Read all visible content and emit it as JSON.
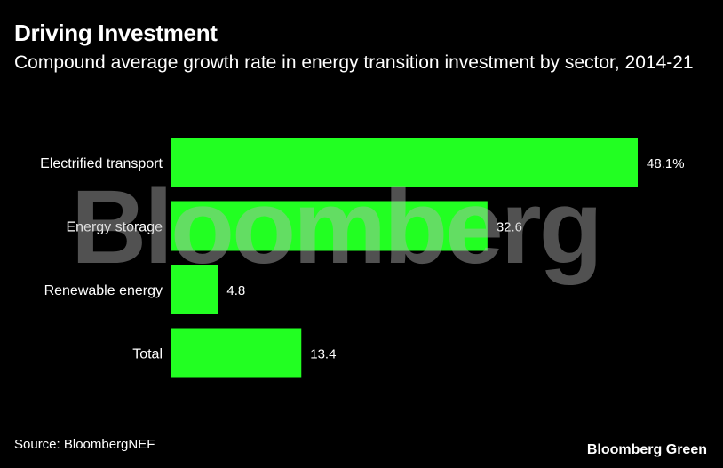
{
  "header": {
    "title": "Driving Investment",
    "subtitle": "Compound average growth rate in energy transition investment by sector, 2014-21"
  },
  "footer": {
    "source": "Source: BloombergNEF",
    "brand": "Bloomberg Green"
  },
  "watermark": "Bloomberg",
  "colors": {
    "background": "#000000",
    "bar": "#22ff22",
    "text": "#ffffff"
  },
  "chart_data": {
    "type": "bar",
    "orientation": "horizontal",
    "title": "Driving Investment",
    "subtitle": "Compound average growth rate in energy transition investment by sector, 2014-21",
    "categories": [
      "Electrified transport",
      "Energy storage",
      "Renewable energy",
      "Total"
    ],
    "values": [
      48.1,
      32.6,
      4.8,
      13.4
    ],
    "value_labels": [
      "48.1%",
      "32.6",
      "4.8",
      "13.4"
    ],
    "xlim": [
      0,
      48.1
    ],
    "grid": false,
    "legend": "none"
  }
}
